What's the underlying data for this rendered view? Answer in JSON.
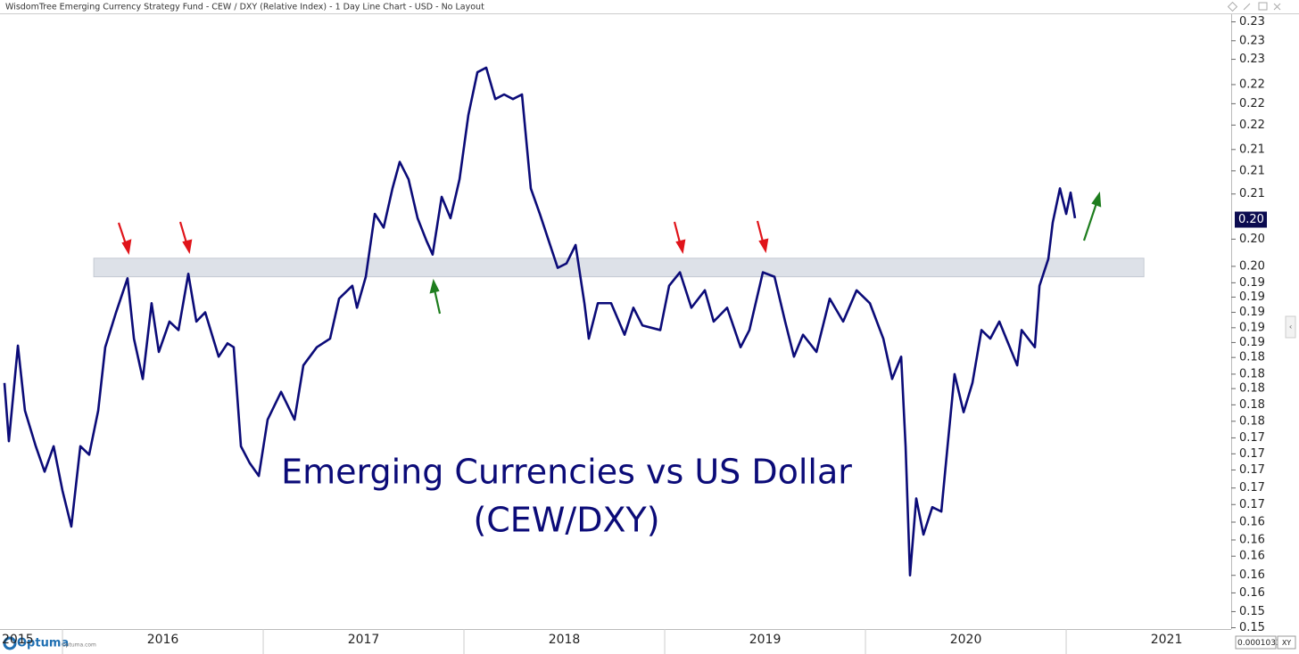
{
  "header": {
    "title": "WisdomTree Emerging Currency Strategy Fund - CEW / DXY (Relative Index) - 1 Day Line Chart - USD - No Layout"
  },
  "footer": {
    "brand": "Optuma",
    "site": "optuma.com",
    "scale_value": "0.0001033",
    "scale_mode": "XY"
  },
  "chart_data": {
    "type": "line",
    "log_scale": true,
    "grid": false,
    "annotations": [
      "Emerging Currencies vs US Dollar",
      "(CEW/DXY)"
    ],
    "xlim": [
      2015.711,
      2021.822
    ],
    "ylim": [
      0.1513,
      0.2325
    ],
    "xticks": [
      {
        "value": 2015.5,
        "label": "2015"
      },
      {
        "value": 2016.5,
        "label": "2016"
      },
      {
        "value": 2017.5,
        "label": "2017"
      },
      {
        "value": 2018.5,
        "label": "2018"
      },
      {
        "value": 2019.5,
        "label": "2019"
      },
      {
        "value": 2020.5,
        "label": "2020"
      },
      {
        "value": 2021.5,
        "label": "2021"
      }
    ],
    "yticks": [
      {
        "value": 0.152,
        "label": "0.15"
      },
      {
        "value": 0.1537,
        "label": "0.15"
      },
      {
        "value": 0.1557,
        "label": "0.16"
      },
      {
        "value": 0.1576,
        "label": "0.16"
      },
      {
        "value": 0.1597,
        "label": "0.16"
      },
      {
        "value": 0.1615,
        "label": "0.16"
      },
      {
        "value": 0.1635,
        "label": "0.16"
      },
      {
        "value": 0.1655,
        "label": "0.17"
      },
      {
        "value": 0.1674,
        "label": "0.17"
      },
      {
        "value": 0.1695,
        "label": "0.17"
      },
      {
        "value": 0.1714,
        "label": "0.17"
      },
      {
        "value": 0.1733,
        "label": "0.17"
      },
      {
        "value": 0.1753,
        "label": "0.18"
      },
      {
        "value": 0.1773,
        "label": "0.18"
      },
      {
        "value": 0.1793,
        "label": "0.18"
      },
      {
        "value": 0.1811,
        "label": "0.18"
      },
      {
        "value": 0.1832,
        "label": "0.18"
      },
      {
        "value": 0.1851,
        "label": "0.19"
      },
      {
        "value": 0.187,
        "label": "0.19"
      },
      {
        "value": 0.189,
        "label": "0.19"
      },
      {
        "value": 0.191,
        "label": "0.19"
      },
      {
        "value": 0.1929,
        "label": "0.19"
      },
      {
        "value": 0.1951,
        "label": "0.20"
      },
      {
        "value": 0.1988,
        "label": "0.20"
      },
      {
        "value": 0.2051,
        "label": "0.21"
      },
      {
        "value": 0.2084,
        "label": "0.21"
      },
      {
        "value": 0.2115,
        "label": "0.21"
      },
      {
        "value": 0.2151,
        "label": "0.22"
      },
      {
        "value": 0.2183,
        "label": "0.22"
      },
      {
        "value": 0.2212,
        "label": "0.22"
      },
      {
        "value": 0.2251,
        "label": "0.23"
      },
      {
        "value": 0.228,
        "label": "0.23"
      },
      {
        "value": 0.231,
        "label": "0.23"
      }
    ],
    "current_value": 0.2015,
    "current_value_label": "0.20",
    "support_band": {
      "x": [
        2016.156,
        2021.387
      ],
      "ylim": [
        0.1937,
        0.1962
      ],
      "color": "#dde1e8"
    },
    "series": [
      {
        "name": "CEW / DXY",
        "color": "#0b0b78",
        "x": [
          2015.711,
          2015.733,
          2015.778,
          2015.813,
          2015.867,
          2015.911,
          2015.956,
          2016.0,
          2016.044,
          2016.089,
          2016.133,
          2016.178,
          2016.213,
          2016.267,
          2016.324,
          2016.356,
          2016.4,
          2016.444,
          2016.48,
          2016.533,
          2016.578,
          2016.627,
          2016.667,
          2016.711,
          2016.778,
          2016.822,
          2016.853,
          2016.889,
          2016.933,
          2016.978,
          2017.022,
          2017.089,
          2017.156,
          2017.2,
          2017.267,
          2017.333,
          2017.378,
          2017.444,
          2017.467,
          2017.511,
          2017.556,
          2017.6,
          2017.644,
          2017.68,
          2017.724,
          2017.769,
          2017.813,
          2017.844,
          2017.889,
          2017.933,
          2017.978,
          2018.022,
          2018.067,
          2018.111,
          2018.156,
          2018.2,
          2018.244,
          2018.289,
          2018.333,
          2018.378,
          2018.422,
          2018.467,
          2018.511,
          2018.556,
          2018.6,
          2018.622,
          2018.667,
          2018.733,
          2018.8,
          2018.844,
          2018.889,
          2018.978,
          2019.022,
          2019.076,
          2019.133,
          2019.2,
          2019.244,
          2019.311,
          2019.378,
          2019.422,
          2019.489,
          2019.547,
          2019.6,
          2019.644,
          2019.689,
          2019.756,
          2019.822,
          2019.889,
          2019.956,
          2020.022,
          2020.089,
          2020.133,
          2020.178,
          2020.2,
          2020.222,
          2020.253,
          2020.289,
          2020.333,
          2020.378,
          2020.409,
          2020.444,
          2020.489,
          2020.533,
          2020.578,
          2020.622,
          2020.667,
          2020.711,
          2020.756,
          2020.778,
          2020.844,
          2020.867,
          2020.911,
          2020.933,
          2020.969,
          2021.0,
          2021.022,
          2021.044
        ],
        "values": [
          0.18,
          0.1729,
          0.1847,
          0.1766,
          0.1723,
          0.1693,
          0.1723,
          0.1671,
          0.163,
          0.1723,
          0.1713,
          0.1766,
          0.1845,
          0.189,
          0.1935,
          0.1856,
          0.1805,
          0.1902,
          0.1839,
          0.1878,
          0.1867,
          0.1941,
          0.1878,
          0.189,
          0.1833,
          0.185,
          0.1845,
          0.1723,
          0.1703,
          0.1688,
          0.1755,
          0.1789,
          0.1755,
          0.1822,
          0.1845,
          0.1856,
          0.1908,
          0.1925,
          0.1896,
          0.1937,
          0.2023,
          0.2004,
          0.2059,
          0.2097,
          0.2072,
          0.2017,
          0.1986,
          0.1967,
          0.2047,
          0.2017,
          0.2072,
          0.2166,
          0.2231,
          0.2238,
          0.219,
          0.2197,
          0.219,
          0.2197,
          0.2059,
          0.2023,
          0.1986,
          0.1949,
          0.1955,
          0.198,
          0.1902,
          0.1856,
          0.1902,
          0.1902,
          0.1861,
          0.1896,
          0.1873,
          0.1867,
          0.1925,
          0.1943,
          0.1896,
          0.1919,
          0.1878,
          0.1896,
          0.1845,
          0.1867,
          0.1943,
          0.1937,
          0.1878,
          0.1833,
          0.1861,
          0.1839,
          0.1908,
          0.1878,
          0.1919,
          0.1902,
          0.1856,
          0.1805,
          0.1833,
          0.1723,
          0.1576,
          0.1662,
          0.1621,
          0.1652,
          0.1647,
          0.1723,
          0.1811,
          0.1764,
          0.18,
          0.1867,
          0.1856,
          0.1878,
          0.185,
          0.1822,
          0.1867,
          0.1845,
          0.1925,
          0.1961,
          0.2011,
          0.2059,
          0.2023,
          0.2053,
          0.2017
        ]
      }
    ]
  }
}
